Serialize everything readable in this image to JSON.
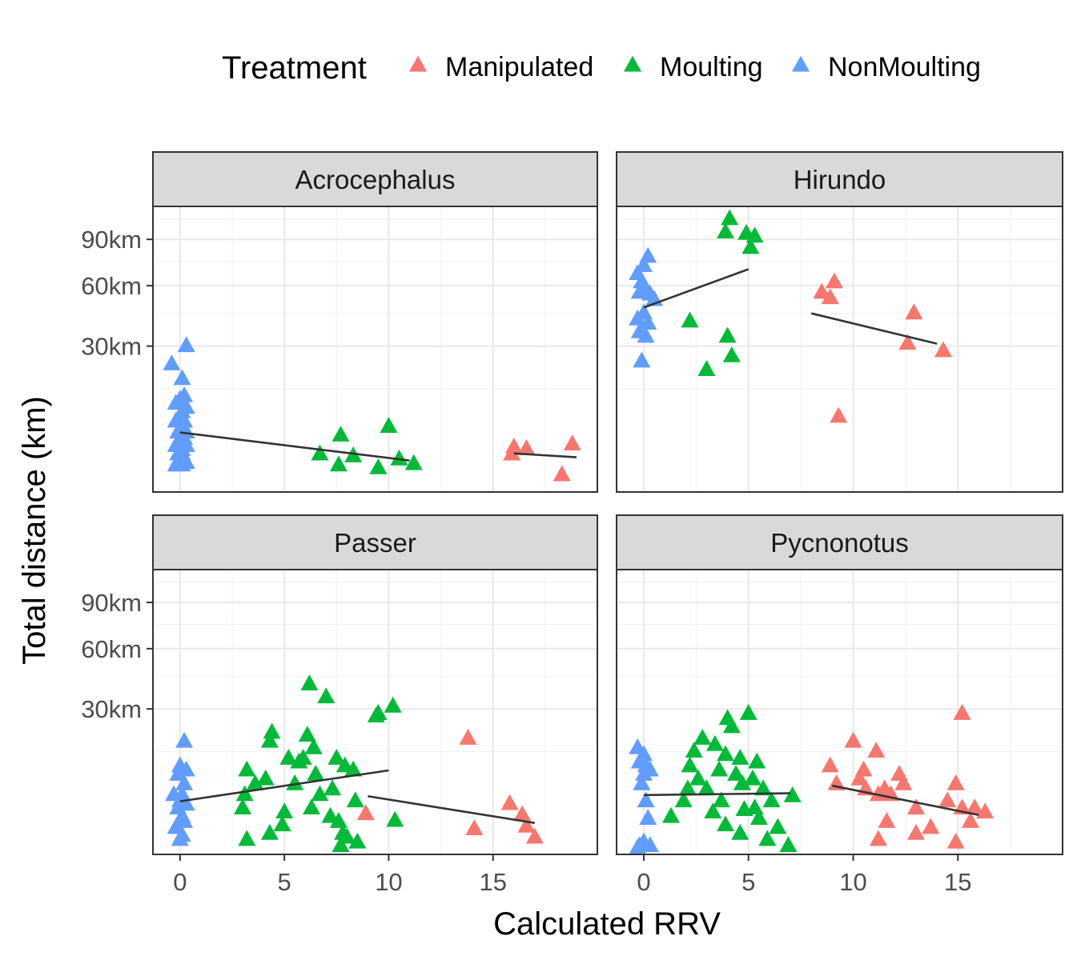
{
  "legend": {
    "title": "Treatment",
    "items": [
      {
        "label": "Manipulated",
        "color": "#F8766D",
        "shape": "triangle"
      },
      {
        "label": "Moulting",
        "color": "#00BA38",
        "shape": "triangle"
      },
      {
        "label": "NonMoulting",
        "color": "#619CFF",
        "shape": "triangle"
      }
    ]
  },
  "chart_data": {
    "type": "scatter",
    "xlabel": "Calculated RRV",
    "ylabel": "Total distance (km)",
    "x_ticks": [
      0,
      5,
      10,
      15
    ],
    "y_ticks": [
      30,
      60,
      90
    ],
    "y_tick_labels": [
      "30km",
      "60km",
      "90km"
    ],
    "y_scale": "sqrt",
    "xlim": [
      -1.3,
      20
    ],
    "ylim": [
      0,
      115
    ],
    "grid": true,
    "legend_position": "top",
    "colors": {
      "Manipulated": "#F8766D",
      "Moulting": "#00BA38",
      "NonMoulting": "#619CFF",
      "trend": "#333333"
    },
    "panels": [
      {
        "name": "Acrocephalus",
        "points": {
          "NonMoulting": [
            [
              0.3,
              30
            ],
            [
              -0.4,
              23
            ],
            [
              0.1,
              18
            ],
            [
              0.2,
              13
            ],
            [
              0,
              12
            ],
            [
              -0.2,
              11
            ],
            [
              0.3,
              10
            ],
            [
              0.1,
              9
            ],
            [
              0,
              8
            ],
            [
              -0.2,
              7
            ],
            [
              0.2,
              7
            ],
            [
              0.1,
              6
            ],
            [
              -0.1,
              5
            ],
            [
              0.3,
              5
            ],
            [
              0,
              4
            ],
            [
              0.2,
              4
            ],
            [
              -0.2,
              3
            ],
            [
              0,
              3
            ],
            [
              0.3,
              3
            ],
            [
              0.1,
              2
            ],
            [
              -0.1,
              2
            ],
            [
              0.2,
              1.5
            ],
            [
              0,
              1.5
            ],
            [
              0.1,
              1
            ],
            [
              -0.2,
              1
            ],
            [
              0.3,
              1.2
            ],
            [
              0.1,
              2.5
            ]
          ],
          "Moulting": [
            [
              7.7,
              4.5
            ],
            [
              10,
              6
            ],
            [
              6.7,
              2
            ],
            [
              7.6,
              1
            ],
            [
              8.3,
              1.8
            ],
            [
              9.5,
              0.8
            ],
            [
              10.5,
              1.5
            ],
            [
              11.2,
              1.1
            ]
          ],
          "Manipulated": [
            [
              16,
              2.8
            ],
            [
              16.6,
              2.6
            ],
            [
              18.8,
              3.2
            ],
            [
              18.3,
              0.4
            ],
            [
              15.9,
              2
            ]
          ]
        },
        "trends": [
          {
            "x": [
              0,
              11
            ],
            "y": [
              5,
              1.4
            ]
          },
          {
            "x": [
              16,
              19
            ],
            "y": [
              2.1,
              1.7
            ]
          }
        ]
      },
      {
        "name": "Hirundo",
        "points": {
          "NonMoulting": [
            [
              0.2,
              78
            ],
            [
              0,
              72
            ],
            [
              -0.3,
              67
            ],
            [
              -0.1,
              62
            ],
            [
              0.1,
              58
            ],
            [
              -0.2,
              56
            ],
            [
              0.3,
              55
            ],
            [
              0.5,
              52
            ],
            [
              0,
              45
            ],
            [
              -0.3,
              42
            ],
            [
              0.2,
              40
            ],
            [
              -0.2,
              36
            ],
            [
              0.1,
              34
            ],
            [
              -0.1,
              24
            ]
          ],
          "Moulting": [
            [
              4.1,
              105
            ],
            [
              3.9,
              95
            ],
            [
              4.9,
              94
            ],
            [
              5.3,
              92
            ],
            [
              5.1,
              84
            ],
            [
              2.2,
              41
            ],
            [
              4,
              34
            ],
            [
              4.2,
              26
            ],
            [
              3,
              21
            ]
          ],
          "Manipulated": [
            [
              8.5,
              56
            ],
            [
              9.1,
              62
            ],
            [
              8.9,
              53
            ],
            [
              12.9,
              45
            ],
            [
              12.6,
              31
            ],
            [
              14.3,
              28
            ],
            [
              9.3,
              8
            ]
          ]
        },
        "trends": [
          {
            "x": [
              0,
              5
            ],
            "y": [
              48,
              70
            ]
          },
          {
            "x": [
              8,
              14
            ],
            "y": [
              45,
              31
            ]
          }
        ]
      },
      {
        "name": "Passer",
        "points": {
          "NonMoulting": [
            [
              0.2,
              18
            ],
            [
              0,
              11
            ],
            [
              0.3,
              10
            ],
            [
              -0.1,
              9
            ],
            [
              0.2,
              7
            ],
            [
              -0.3,
              5
            ],
            [
              0.1,
              5
            ],
            [
              0,
              4
            ],
            [
              0.3,
              3.5
            ],
            [
              -0.1,
              3
            ],
            [
              0.1,
              2
            ],
            [
              0.2,
              1.5
            ],
            [
              -0.2,
              1
            ],
            [
              0.1,
              0.5
            ],
            [
              0,
              0.3
            ]
          ],
          "Moulting": [
            [
              6.2,
              41
            ],
            [
              7,
              35
            ],
            [
              9.4,
              27
            ],
            [
              10.2,
              31
            ],
            [
              9.5,
              28
            ],
            [
              4.4,
              21
            ],
            [
              6.1,
              20
            ],
            [
              4.3,
              18
            ],
            [
              6.4,
              16
            ],
            [
              7.5,
              13
            ],
            [
              5.2,
              13
            ],
            [
              5.7,
              12
            ],
            [
              5.9,
              13
            ],
            [
              7.9,
              11
            ],
            [
              8.3,
              10
            ],
            [
              3.2,
              10
            ],
            [
              6.5,
              9
            ],
            [
              4.1,
              8
            ],
            [
              3.6,
              7
            ],
            [
              5.5,
              7
            ],
            [
              7.3,
              6
            ],
            [
              3.1,
              5
            ],
            [
              6.7,
              5
            ],
            [
              8.4,
              4
            ],
            [
              6.3,
              3
            ],
            [
              3,
              3
            ],
            [
              5,
              2.5
            ],
            [
              7.2,
              2
            ],
            [
              7.6,
              1.5
            ],
            [
              7.8,
              0.6
            ],
            [
              4.3,
              0.6
            ],
            [
              4.9,
              1.2
            ],
            [
              8,
              0.4
            ],
            [
              3.2,
              0.3
            ],
            [
              8.5,
              0.2
            ],
            [
              7.7,
              0.1
            ],
            [
              10.3,
              1.6
            ]
          ],
          "Manipulated": [
            [
              13.8,
              19
            ],
            [
              8.9,
              2.3
            ],
            [
              14.1,
              0.9
            ],
            [
              15.8,
              3.6
            ],
            [
              16.6,
              1.1
            ],
            [
              17,
              0.4
            ],
            [
              16.4,
              2.2
            ]
          ]
        },
        "trends": [
          {
            "x": [
              0,
              10
            ],
            "y": [
              4,
              10
            ]
          },
          {
            "x": [
              9,
              17
            ],
            "y": [
              4.8,
              1.4
            ]
          }
        ]
      },
      {
        "name": "Pycnonotus",
        "points": {
          "NonMoulting": [
            [
              -0.3,
              16
            ],
            [
              0,
              14
            ],
            [
              -0.2,
              12
            ],
            [
              0.1,
              11
            ],
            [
              0.3,
              10
            ],
            [
              0,
              9
            ],
            [
              -0.1,
              7
            ],
            [
              0.1,
              4
            ],
            [
              0.2,
              1.8
            ],
            [
              0,
              0.2
            ],
            [
              -0.2,
              0.1
            ],
            [
              0.3,
              0.1
            ],
            [
              -0.3,
              0.05
            ]
          ],
          "Moulting": [
            [
              5,
              28
            ],
            [
              4,
              26
            ],
            [
              4.2,
              23
            ],
            [
              2.8,
              19
            ],
            [
              3.4,
              17
            ],
            [
              2.4,
              15
            ],
            [
              3.9,
              14
            ],
            [
              4.6,
              13
            ],
            [
              2.2,
              11
            ],
            [
              5.4,
              12
            ],
            [
              3.6,
              10
            ],
            [
              4.4,
              9
            ],
            [
              2.6,
              8
            ],
            [
              5.2,
              8
            ],
            [
              4.7,
              7
            ],
            [
              3,
              6
            ],
            [
              2.1,
              6
            ],
            [
              5.7,
              6
            ],
            [
              1.9,
              4
            ],
            [
              3.7,
              4
            ],
            [
              5.3,
              3
            ],
            [
              6.1,
              4
            ],
            [
              4.8,
              2.8
            ],
            [
              3.3,
              2.5
            ],
            [
              1.3,
              2
            ],
            [
              5.5,
              1.8
            ],
            [
              3.9,
              1.2
            ],
            [
              6.4,
              1
            ],
            [
              4.6,
              0.6
            ],
            [
              5.9,
              0.3
            ],
            [
              7.1,
              4.8
            ],
            [
              6.9,
              0.1
            ]
          ],
          "Manipulated": [
            [
              15.2,
              28
            ],
            [
              10,
              18
            ],
            [
              11.1,
              15
            ],
            [
              8.9,
              11
            ],
            [
              10.5,
              10
            ],
            [
              12.2,
              9
            ],
            [
              12.4,
              7
            ],
            [
              10.3,
              8
            ],
            [
              14.9,
              7
            ],
            [
              9.2,
              7
            ],
            [
              10.6,
              6
            ],
            [
              11.5,
              6
            ],
            [
              11.2,
              5
            ],
            [
              11.8,
              5
            ],
            [
              14.5,
              4
            ],
            [
              13,
              3
            ],
            [
              15.2,
              3
            ],
            [
              15.8,
              3
            ],
            [
              16.3,
              2.5
            ],
            [
              11.6,
              1.5
            ],
            [
              13.7,
              1
            ],
            [
              15.6,
              1.5
            ],
            [
              11.2,
              0.3
            ],
            [
              13,
              0.6
            ],
            [
              14.9,
              0.2
            ]
          ],
          "Outlier": []
        },
        "trends": [
          {
            "x": [
              0,
              7
            ],
            "y": [
              5,
              5.3
            ]
          },
          {
            "x": [
              9,
              16
            ],
            "y": [
              6.7,
              2.2
            ]
          }
        ]
      }
    ]
  }
}
